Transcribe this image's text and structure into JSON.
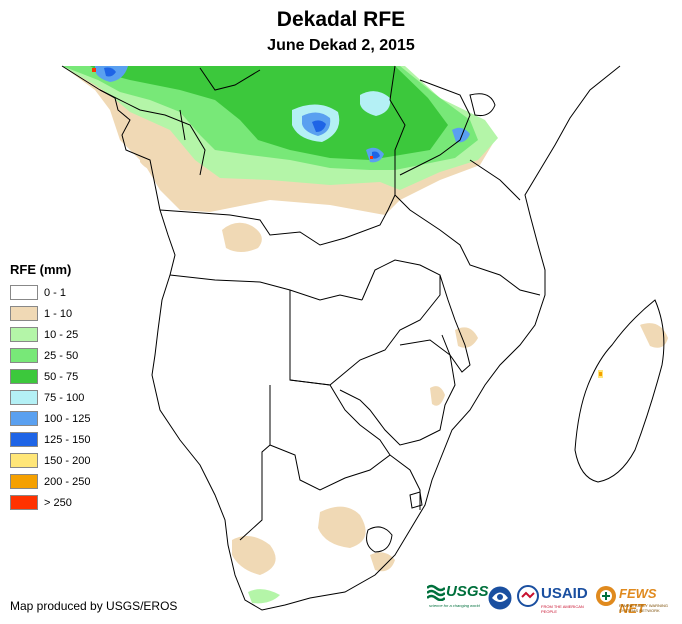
{
  "header": {
    "title": "Dekadal RFE",
    "subtitle": "June Dekad 2, 2015"
  },
  "legend": {
    "title": "RFE (mm)",
    "items": [
      {
        "label": "0 - 1",
        "color": "#ffffff"
      },
      {
        "label": "1 - 10",
        "color": "#f0d9b5"
      },
      {
        "label": "10 - 25",
        "color": "#b4f5a8"
      },
      {
        "label": "25 - 50",
        "color": "#78e878"
      },
      {
        "label": "50 - 75",
        "color": "#3cc83c"
      },
      {
        "label": "75 - 100",
        "color": "#b4f0f5"
      },
      {
        "label": "100 - 125",
        "color": "#5aa0f0"
      },
      {
        "label": "125 - 150",
        "color": "#1e64e6"
      },
      {
        "label": "150 - 200",
        "color": "#ffe678"
      },
      {
        "label": "200 - 250",
        "color": "#f5a000"
      },
      {
        "label": "> 250",
        "color": "#ff3200"
      }
    ]
  },
  "footer": {
    "credit": "Map produced by USGS/EROS",
    "logos": {
      "usgs": "USGS",
      "usgs_tagline": "science for a changing world",
      "usaid": "USAID",
      "usaid_tagline": "FROM THE AMERICAN PEOPLE",
      "fewsnet": "FEWS NET",
      "fewsnet_tagline": "FAMINE EARLY WARNING SYSTEMS NETWORK"
    }
  },
  "colors": {
    "border": "#000000",
    "noaa_blue": "#1a4fa0",
    "usgs_green": "#00703c",
    "usaid_red": "#c8102e",
    "fews_orange": "#e08a1e"
  }
}
